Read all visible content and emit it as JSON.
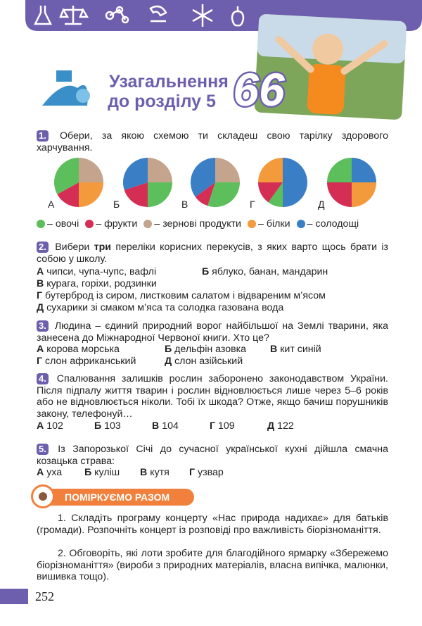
{
  "header": {
    "title_line1": "Узагальнення",
    "title_line2": "до розділу 5",
    "number": "66"
  },
  "q1": {
    "number": "1.",
    "text": "Обери, за якою схемою ти складеш свою тарілку здорового харчування.",
    "plates": [
      {
        "label": "А",
        "segments": [
          {
            "color": "#c4a48c",
            "value": 25
          },
          {
            "color": "#f39a3c",
            "value": 25
          },
          {
            "color": "#d52e55",
            "value": 17
          },
          {
            "color": "#5cbf5c",
            "value": 33
          }
        ]
      },
      {
        "label": "Б",
        "segments": [
          {
            "color": "#c4a48c",
            "value": 25
          },
          {
            "color": "#5cbf5c",
            "value": 25
          },
          {
            "color": "#d52e55",
            "value": 20
          },
          {
            "color": "#3a7ec6",
            "value": 30
          }
        ]
      },
      {
        "label": "В",
        "segments": [
          {
            "color": "#c4a48c",
            "value": 25
          },
          {
            "color": "#5cbf5c",
            "value": 30
          },
          {
            "color": "#d52e55",
            "value": 10
          },
          {
            "color": "#3a7ec6",
            "value": 35
          }
        ]
      },
      {
        "label": "Г",
        "segments": [
          {
            "color": "#3a7ec6",
            "value": 50
          },
          {
            "color": "#5cbf5c",
            "value": 10
          },
          {
            "color": "#d52e55",
            "value": 15
          },
          {
            "color": "#f39a3c",
            "value": 25
          }
        ]
      },
      {
        "label": "Д",
        "segments": [
          {
            "color": "#3a7ec6",
            "value": 25
          },
          {
            "color": "#f39a3c",
            "value": 25
          },
          {
            "color": "#d52e55",
            "value": 25
          },
          {
            "color": "#5cbf5c",
            "value": 25
          }
        ]
      }
    ],
    "legend": [
      {
        "color": "#5cbf5c",
        "label": "– овочі"
      },
      {
        "color": "#d52e55",
        "label": "– фрукти"
      },
      {
        "color": "#c4a48c",
        "label": "– зернові продукти"
      },
      {
        "color": "#f39a3c",
        "label": "– білки"
      },
      {
        "color": "#3a7ec6",
        "label": "– солодощі"
      }
    ]
  },
  "q2": {
    "number": "2.",
    "text_before": "Вибери",
    "text_bold": "три",
    "text_after": "переліки корисних перекусів, з яких варто щось брати із собою у школу.",
    "options": [
      {
        "letter": "А",
        "text": "чипси, чупа-чупс, вафлі"
      },
      {
        "letter": "Б",
        "text": "яблуко, банан, мандарин"
      },
      {
        "letter": "В",
        "text": "курага, горіхи, родзинки"
      },
      {
        "letter": "Г",
        "text": "бутерброд із сиром, листковим салатом і відвареним м’ясом"
      },
      {
        "letter": "Д",
        "text": "сухарики зі смаком м’яса та солодка газована вода"
      }
    ]
  },
  "q3": {
    "number": "3.",
    "text": "Людина – єдиний природний ворог найбільшої на Землі тварини, яка занесена до Міжнародної Червоної книги. Хто це?",
    "options": [
      {
        "letter": "А",
        "text": "корова морська"
      },
      {
        "letter": "Б",
        "text": "дельфін азовка"
      },
      {
        "letter": "В",
        "text": "кит синій"
      },
      {
        "letter": "Г",
        "text": "слон африканський"
      },
      {
        "letter": "Д",
        "text": "слон азійський"
      }
    ]
  },
  "q4": {
    "number": "4.",
    "text": "Спалювання залишків рослин заборонено законодавством України. Після підпалу життя тварин і рослин відновлюється лише через 5–6 років або не відновлюється ніколи. Тобі їх шкода? Отже, якщо бачиш порушників закону, телефонуй…",
    "options": [
      {
        "letter": "А",
        "text": "102"
      },
      {
        "letter": "Б",
        "text": "103"
      },
      {
        "letter": "В",
        "text": "104"
      },
      {
        "letter": "Г",
        "text": "109"
      },
      {
        "letter": "Д",
        "text": "122"
      }
    ]
  },
  "q5": {
    "number": "5.",
    "text": "Із Запорозької Січі до сучасної української кухні дійшла смачна козацька страва:",
    "options": [
      {
        "letter": "А",
        "text": "уха"
      },
      {
        "letter": "Б",
        "text": "куліш"
      },
      {
        "letter": "В",
        "text": "кутя"
      },
      {
        "letter": "Г",
        "text": "узвар"
      }
    ]
  },
  "discuss": {
    "title": "ПОМІРКУЄМО РАЗОМ",
    "items": [
      "1. Складіть програму концерту «Нас природа надихає» для батьків (громади). Розпочніть концерт із розповіді про важливість біорізноманіття.",
      "2. Обговоріть, які лоти зробите для благодійного ярмарку «Збережемо біорізноманіття» (вироби з природних матеріалів, власна випічка, малюнки, вишивка тощо)."
    ]
  },
  "page_number": "252"
}
